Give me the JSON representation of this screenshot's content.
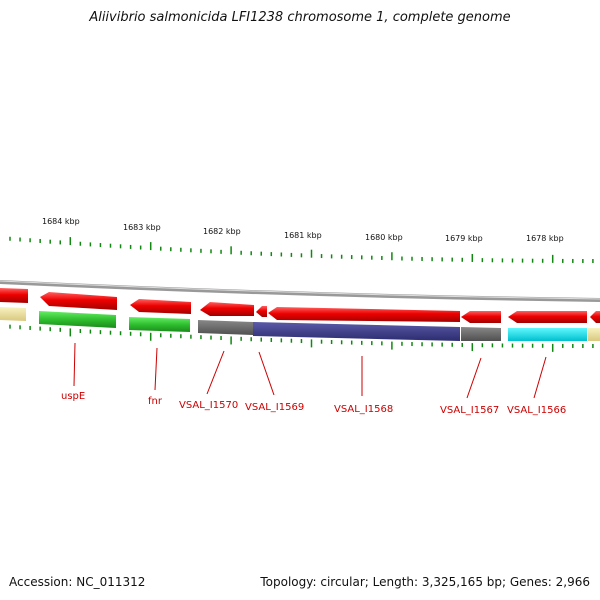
{
  "title": "Aliivibrio salmonicida LFI1238 chromosome 1, complete genome",
  "footer": {
    "accession": "Accession: NC_011312",
    "summary": "Topology: circular; Length: 3,325,165 bp; Genes: 2,966"
  },
  "kbp_labels": [
    "1684 kbp",
    "1683 kbp",
    "1682 kbp",
    "1681 kbp",
    "1680 kbp",
    "1679 kbp",
    "1678 kbp"
  ],
  "gene_labels": [
    "uspE",
    "fnr",
    "VSAL_I1570",
    "VSAL_I1569",
    "VSAL_I1568",
    "VSAL_I1567",
    "VSAL_I1566"
  ],
  "colors": {
    "forward_strand": "#ee0000",
    "uspE": "#33cc33",
    "fnr": "#33cc33",
    "VSAL_I1570": "#666666",
    "VSAL_I1568": "#3f3f8f",
    "VSAL_I1567": "#666666",
    "VSAL_I1566": "#00e5ee",
    "edge_feature": "#e8e0a0",
    "backbone": "#888888",
    "ticks": "#118811",
    "label": "#cc0000"
  }
}
